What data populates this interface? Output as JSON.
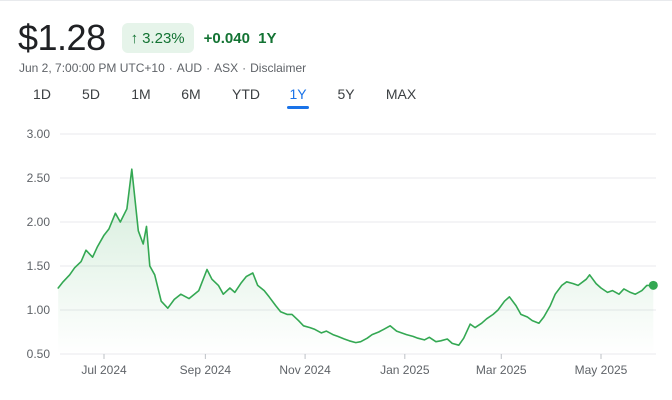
{
  "quote": {
    "price": "$1.28",
    "change_percent": "3.23%",
    "change_arrow": "arrow-up-icon",
    "change_absolute": "+0.040",
    "change_period": "1Y",
    "meta": {
      "timestamp": "Jun 2, 7:00:00 PM UTC+10",
      "currency": "AUD",
      "exchange": "ASX",
      "disclaimer": "Disclaimer"
    }
  },
  "range_tabs": {
    "items": [
      "1D",
      "5D",
      "1M",
      "6M",
      "YTD",
      "1Y",
      "5Y",
      "MAX"
    ],
    "selected": "1Y"
  },
  "colors": {
    "accent": "#1a73e8",
    "positive": "#137333",
    "line": "#34a853",
    "chip_bg": "#e6f4ea"
  },
  "chart_data": {
    "type": "area",
    "y_ticks": [
      "3.00",
      "2.50",
      "2.00",
      "1.50",
      "1.00",
      "0.50"
    ],
    "ylim": [
      0.5,
      3.0
    ],
    "x_ticks": [
      {
        "label": "Jul 2024",
        "date": "2024-07-01"
      },
      {
        "label": "Sep 2024",
        "date": "2024-09-01"
      },
      {
        "label": "Nov 2024",
        "date": "2024-11-01"
      },
      {
        "label": "Jan 2025",
        "date": "2025-01-01"
      },
      {
        "label": "Mar 2025",
        "date": "2025-03-01"
      },
      {
        "label": "May 2025",
        "date": "2025-05-01"
      }
    ],
    "grid": true,
    "series": [
      {
        "x": [
          "2024-06-03",
          "2024-06-06",
          "2024-06-10",
          "2024-06-13",
          "2024-06-17",
          "2024-06-20",
          "2024-06-24",
          "2024-06-27",
          "2024-07-01",
          "2024-07-04",
          "2024-07-08",
          "2024-07-11",
          "2024-07-15",
          "2024-07-18",
          "2024-07-22",
          "2024-07-25",
          "2024-07-27",
          "2024-07-29",
          "2024-08-01",
          "2024-08-05",
          "2024-08-09",
          "2024-08-13",
          "2024-08-17",
          "2024-08-22",
          "2024-08-28",
          "2024-09-02",
          "2024-09-05",
          "2024-09-09",
          "2024-09-12",
          "2024-09-16",
          "2024-09-19",
          "2024-09-23",
          "2024-09-26",
          "2024-09-30",
          "2024-10-03",
          "2024-10-07",
          "2024-10-10",
          "2024-10-14",
          "2024-10-17",
          "2024-10-21",
          "2024-10-24",
          "2024-10-28",
          "2024-10-31",
          "2024-11-04",
          "2024-11-07",
          "2024-11-11",
          "2024-11-14",
          "2024-11-18",
          "2024-11-21",
          "2024-11-25",
          "2024-11-28",
          "2024-12-02",
          "2024-12-05",
          "2024-12-09",
          "2024-12-12",
          "2024-12-16",
          "2024-12-19",
          "2024-12-23",
          "2024-12-27",
          "2025-01-02",
          "2025-01-06",
          "2025-01-09",
          "2025-01-13",
          "2025-01-16",
          "2025-01-20",
          "2025-01-23",
          "2025-01-27",
          "2025-01-30",
          "2025-02-03",
          "2025-02-06",
          "2025-02-10",
          "2025-02-13",
          "2025-02-17",
          "2025-02-20",
          "2025-02-24",
          "2025-02-27",
          "2025-03-03",
          "2025-03-06",
          "2025-03-10",
          "2025-03-13",
          "2025-03-17",
          "2025-03-20",
          "2025-03-24",
          "2025-03-27",
          "2025-03-31",
          "2025-04-03",
          "2025-04-07",
          "2025-04-10",
          "2025-04-14",
          "2025-04-17",
          "2025-04-22",
          "2025-04-24",
          "2025-04-28",
          "2025-05-01",
          "2025-05-05",
          "2025-05-08",
          "2025-05-12",
          "2025-05-15",
          "2025-05-19",
          "2025-05-22",
          "2025-05-26",
          "2025-05-29",
          "2025-06-02"
        ],
        "y": [
          1.25,
          1.32,
          1.4,
          1.48,
          1.55,
          1.68,
          1.6,
          1.72,
          1.85,
          1.92,
          2.1,
          2.0,
          2.15,
          2.6,
          1.9,
          1.75,
          1.95,
          1.5,
          1.4,
          1.1,
          1.02,
          1.12,
          1.18,
          1.13,
          1.22,
          1.46,
          1.35,
          1.28,
          1.18,
          1.25,
          1.2,
          1.31,
          1.38,
          1.42,
          1.28,
          1.22,
          1.15,
          1.05,
          0.98,
          0.95,
          0.95,
          0.88,
          0.82,
          0.8,
          0.78,
          0.74,
          0.76,
          0.72,
          0.7,
          0.67,
          0.65,
          0.63,
          0.64,
          0.68,
          0.72,
          0.75,
          0.78,
          0.82,
          0.76,
          0.72,
          0.7,
          0.68,
          0.66,
          0.69,
          0.64,
          0.65,
          0.67,
          0.62,
          0.6,
          0.68,
          0.84,
          0.8,
          0.85,
          0.9,
          0.95,
          1.0,
          1.1,
          1.15,
          1.05,
          0.95,
          0.92,
          0.88,
          0.85,
          0.92,
          1.05,
          1.18,
          1.28,
          1.32,
          1.3,
          1.28,
          1.35,
          1.4,
          1.3,
          1.25,
          1.2,
          1.22,
          1.18,
          1.24,
          1.2,
          1.18,
          1.22,
          1.28,
          1.28
        ]
      }
    ]
  }
}
